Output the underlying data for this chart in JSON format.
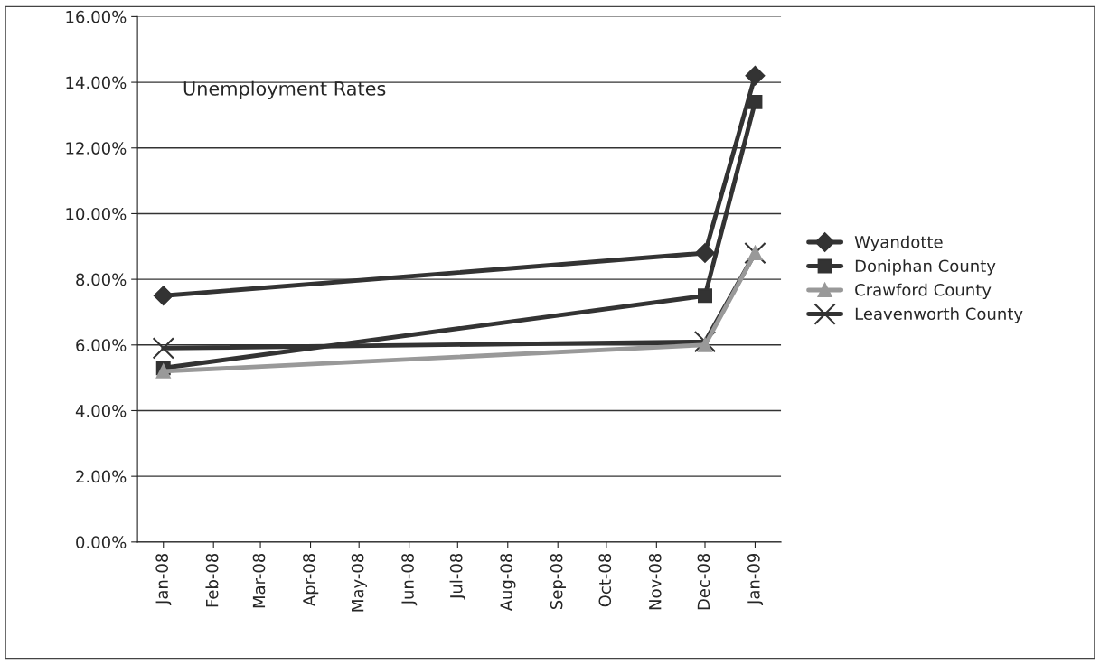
{
  "chart_data": {
    "type": "line",
    "title": "Unemployment Rates",
    "series": [
      {
        "name": "Wyandotte",
        "color": "#333333",
        "marker": "diamond",
        "x": [
          "2008-01",
          "2008-12",
          "2009-01"
        ],
        "values": [
          7.5,
          8.8,
          14.2
        ]
      },
      {
        "name": "Doniphan County",
        "color": "#333333",
        "marker": "square",
        "x": [
          "2008-01",
          "2008-12",
          "2009-01"
        ],
        "values": [
          5.3,
          7.5,
          13.4
        ]
      },
      {
        "name": "Crawford County",
        "color": "#999999",
        "marker": "triangle",
        "x": [
          "2008-01",
          "2008-12",
          "2009-01"
        ],
        "values": [
          5.2,
          6.0,
          8.8
        ]
      },
      {
        "name": "Leavenworth County",
        "color": "#333333",
        "marker": "cross",
        "x": [
          "2008-01",
          "2008-12",
          "2009-01"
        ],
        "values": [
          5.9,
          6.1,
          8.8
        ]
      }
    ],
    "xlim": [
      "2007-12-16",
      "2009-01-17"
    ],
    "xticks": [
      {
        "value": "2008-01",
        "label": "Jan-08"
      },
      {
        "value": "2008-02",
        "label": "Feb-08"
      },
      {
        "value": "2008-03",
        "label": "Mar-08"
      },
      {
        "value": "2008-04",
        "label": "Apr-08"
      },
      {
        "value": "2008-05",
        "label": "May-08"
      },
      {
        "value": "2008-06",
        "label": "Jun-08"
      },
      {
        "value": "2008-07",
        "label": "Jul-08"
      },
      {
        "value": "2008-08",
        "label": "Aug-08"
      },
      {
        "value": "2008-09",
        "label": "Sep-08"
      },
      {
        "value": "2008-10",
        "label": "Oct-08"
      },
      {
        "value": "2008-11",
        "label": "Nov-08"
      },
      {
        "value": "2008-12",
        "label": "Dec-08"
      },
      {
        "value": "2009-01",
        "label": "Jan-09"
      }
    ],
    "ylim": [
      0,
      16
    ],
    "yticks": [
      {
        "value": 0,
        "label": "0.00%"
      },
      {
        "value": 2,
        "label": "2.00%"
      },
      {
        "value": 4,
        "label": "4.00%"
      },
      {
        "value": 6,
        "label": "6.00%"
      },
      {
        "value": 8,
        "label": "8.00%"
      },
      {
        "value": 10,
        "label": "10.00%"
      },
      {
        "value": 12,
        "label": "12.00%"
      },
      {
        "value": 14,
        "label": "14.00%"
      },
      {
        "value": 16,
        "label": "16.00%"
      }
    ],
    "grid": "y",
    "legend": "right",
    "line_style": "solid"
  }
}
